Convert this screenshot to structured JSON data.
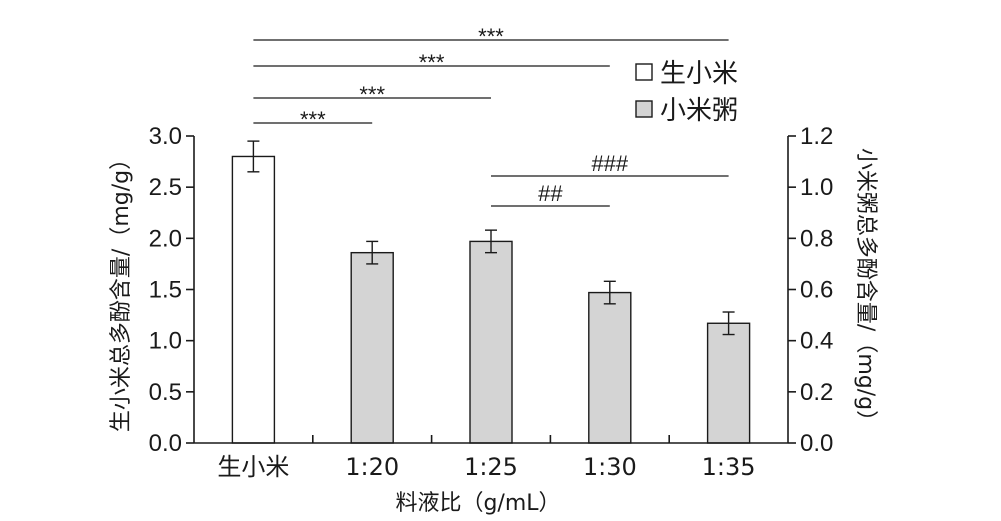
{
  "chart_data": {
    "type": "bar",
    "categories": [
      "生小米",
      "1:20",
      "1:25",
      "1:30",
      "1:35"
    ],
    "values": [
      2.8,
      1.86,
      1.97,
      1.47,
      1.17
    ],
    "errors": [
      0.15,
      0.11,
      0.11,
      0.11,
      0.11
    ],
    "series_of_bar": [
      "生小米",
      "小米粥",
      "小米粥",
      "小米粥",
      "小米粥"
    ],
    "xlabel": "料液比（g/mL）",
    "ylabel_left": "生小米总多酚含量/（mg/g）",
    "ylabel_right": "小米粥总多酚含量/（mg/g）",
    "ylim_left": [
      0,
      3.0
    ],
    "ylim_right": [
      0,
      1.2
    ],
    "yticks_left": [
      "0.0",
      "0.5",
      "1.0",
      "1.5",
      "2.0",
      "2.5",
      "3.0"
    ],
    "yticks_right": [
      "0.0",
      "0.2",
      "0.4",
      "0.6",
      "0.8",
      "1.0",
      "1.2"
    ],
    "legend": [
      {
        "label": "生小米",
        "color": "#ffffff"
      },
      {
        "label": "小米粥",
        "color": "#d4d4d4"
      }
    ],
    "legend_position": "top-right",
    "significance": [
      {
        "from": 0,
        "to": 1,
        "label": "***"
      },
      {
        "from": 0,
        "to": 2,
        "label": "***"
      },
      {
        "from": 0,
        "to": 3,
        "label": "***"
      },
      {
        "from": 0,
        "to": 4,
        "label": "***"
      },
      {
        "from": 2,
        "to": 3,
        "label": "##"
      },
      {
        "from": 2,
        "to": 4,
        "label": "###"
      }
    ]
  }
}
